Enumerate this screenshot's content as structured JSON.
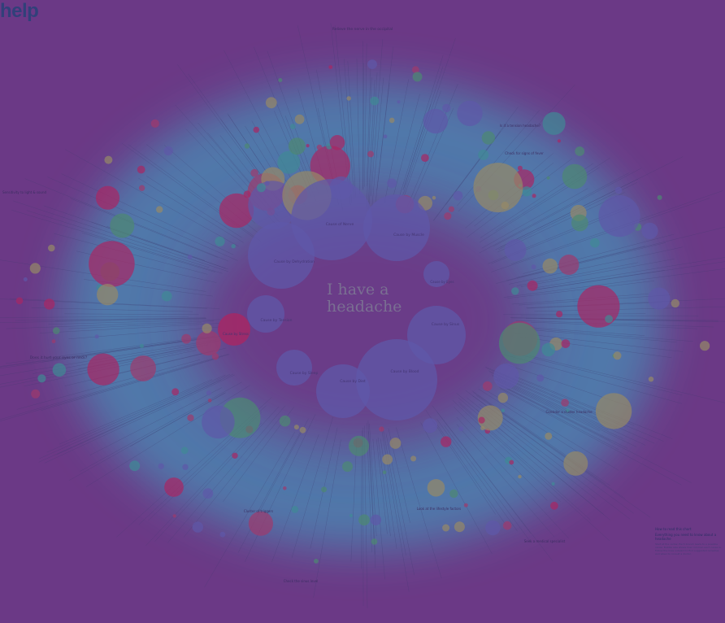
{
  "header": {
    "title": "help"
  },
  "center": {
    "line1": "I have a",
    "line2": "headache"
  },
  "colors": {
    "background": "#6b3a85",
    "halo": "#4aa3c7",
    "bubble_blue": "#5a64b5",
    "bubble_teal": "#2fa89a",
    "bubble_green": "#41a66a",
    "bubble_olive": "#a7a85a",
    "bubble_red": "#b23a63",
    "bubble_crimson": "#c01f55"
  },
  "labels": {
    "top": "Relieve the nerve in the occipital",
    "left": "Does it hurt your eyes or neck?",
    "left_upper": "Sensitivity to light & sound",
    "right_upper": "Is it a tension headache?",
    "right_upper2": "Check for signs of fever",
    "right_mid": "Consider a cluster headache",
    "right_lower": "Seek a medical specialist",
    "bottom_left": "Cluster of triggers",
    "bottom_center": "Check the sinus level",
    "bottom_right": "Look at the lifestyle factors"
  },
  "bubbles": {
    "cause_a": "Cause of Nerve",
    "cause_b": "Cause by Muscle",
    "cause_c": "Cause by Dehydration",
    "cause_d": "Cause by Tension",
    "cause_e": "Cause by Sinus",
    "cause_f": "Cause by Blood",
    "cause_g": "Cause by Diet",
    "cause_h": "Cause by Sleep",
    "cause_i": "Cause by Eyes",
    "cause_j": "Cause by Stress"
  },
  "legend": {
    "title": "How to read this chart",
    "subtitle": "Everything you need to know about a headache",
    "body": "Start at the center. Each branch leads to a possible cause. Bubble size shows how common each cause is. Follow the lines outward to find suggested remedies and when to consult a doctor."
  }
}
